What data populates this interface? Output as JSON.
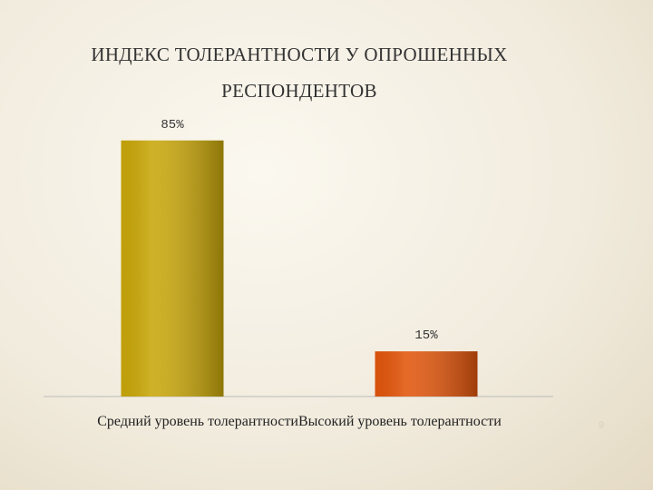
{
  "chart_data": {
    "type": "bar",
    "title": "ИНДЕКС ТОЛЕРАНТНОСТИ У ОПРОШЕННЫХ РЕСПОНДЕНТОВ",
    "categories": [
      "Средний уровень толерантности",
      "Высокий уровень толерантности"
    ],
    "values": [
      85,
      15
    ],
    "value_labels": [
      "85%",
      "15%"
    ],
    "colors": [
      "#c9a70a",
      "#e2560c"
    ]
  },
  "page_number": "9"
}
